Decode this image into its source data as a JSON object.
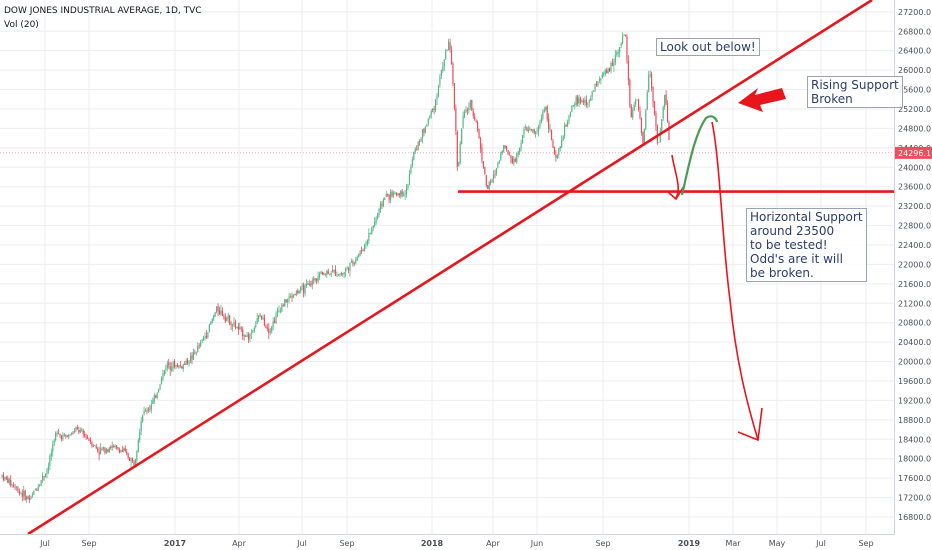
{
  "header": {
    "symbol_line": "DOW JONES INDUSTRIAL AVERAGE, 1D, TVC",
    "volume_line": "Vol (20)"
  },
  "colors": {
    "up_candle": "#53b987",
    "down_candle": "#eb4d5c",
    "trendline": "#e8161c",
    "green_path": "#4c9a52",
    "price_badge": "#ef4d5c",
    "grid": "#eceef1"
  },
  "chart_data": {
    "type": "candlestick",
    "symbol": "DOW JONES INDUSTRIAL AVERAGE",
    "interval": "1D",
    "source": "TVC",
    "ylim": [
      16000,
      27400
    ],
    "y_ticks": [
      "16800.0",
      "17200.0",
      "17600.0",
      "18000.0",
      "18400.0",
      "18800.0",
      "19200.0",
      "19600.0",
      "20000.0",
      "20400.0",
      "20800.0",
      "21200.0",
      "21600.0",
      "22000.0",
      "22400.0",
      "22800.0",
      "23200.0",
      "23600.0",
      "24000.0",
      "24400.0",
      "24800.0",
      "25200.0",
      "25600.0",
      "26000.0",
      "26400.0",
      "26800.0",
      "27200.0"
    ],
    "x_ticks": [
      "Jul",
      "Sep",
      "2017",
      "Apr",
      "Jul",
      "Sep",
      "2018",
      "Apr",
      "Jun",
      "Sep",
      "2019",
      "Mar",
      "May",
      "Jul",
      "Sep"
    ],
    "last_price": "24296.1",
    "series_approx": [
      [
        "2016-06-20",
        17650
      ],
      [
        "2016-06-27",
        17150
      ],
      [
        "2016-07-05",
        17800
      ],
      [
        "2016-07-15",
        18500
      ],
      [
        "2016-08-01",
        18450
      ],
      [
        "2016-08-15",
        18600
      ],
      [
        "2016-09-01",
        18400
      ],
      [
        "2016-09-15",
        18150
      ],
      [
        "2016-10-01",
        18250
      ],
      [
        "2016-10-20",
        18150
      ],
      [
        "2016-11-04",
        17900
      ],
      [
        "2016-11-15",
        18900
      ],
      [
        "2016-12-01",
        19150
      ],
      [
        "2016-12-20",
        19950
      ],
      [
        "2017-01-10",
        19900
      ],
      [
        "2017-01-26",
        20100
      ],
      [
        "2017-02-15",
        20600
      ],
      [
        "2017-03-01",
        21100
      ],
      [
        "2017-03-15",
        20900
      ],
      [
        "2017-04-01",
        20650
      ],
      [
        "2017-04-15",
        20500
      ],
      [
        "2017-05-01",
        20950
      ],
      [
        "2017-05-15",
        20650
      ],
      [
        "2017-06-01",
        21150
      ],
      [
        "2017-06-20",
        21400
      ],
      [
        "2017-07-10",
        21550
      ],
      [
        "2017-07-25",
        21800
      ],
      [
        "2017-08-10",
        21850
      ],
      [
        "2017-08-25",
        21800
      ],
      [
        "2017-09-10",
        22050
      ],
      [
        "2017-09-25",
        22350
      ],
      [
        "2017-10-10",
        22850
      ],
      [
        "2017-10-25",
        23400
      ],
      [
        "2017-11-10",
        23450
      ],
      [
        "2017-11-25",
        23500
      ],
      [
        "2017-12-05",
        24250
      ],
      [
        "2017-12-20",
        24750
      ],
      [
        "2018-01-05",
        25300
      ],
      [
        "2018-01-15",
        26000
      ],
      [
        "2018-01-26",
        26600
      ],
      [
        "2018-02-02",
        25550
      ],
      [
        "2018-02-08",
        23900
      ],
      [
        "2018-02-15",
        25000
      ],
      [
        "2018-02-26",
        25300
      ],
      [
        "2018-03-08",
        24900
      ],
      [
        "2018-03-23",
        23550
      ],
      [
        "2018-04-02",
        23800
      ],
      [
        "2018-04-15",
        24450
      ],
      [
        "2018-05-01",
        24100
      ],
      [
        "2018-05-15",
        24800
      ],
      [
        "2018-06-01",
        24700
      ],
      [
        "2018-06-12",
        25300
      ],
      [
        "2018-06-27",
        24100
      ],
      [
        "2018-07-10",
        24800
      ],
      [
        "2018-07-25",
        25400
      ],
      [
        "2018-08-10",
        25300
      ],
      [
        "2018-08-25",
        25800
      ],
      [
        "2018-09-10",
        26000
      ],
      [
        "2018-09-25",
        26500
      ],
      [
        "2018-10-03",
        26800
      ],
      [
        "2018-10-11",
        25050
      ],
      [
        "2018-10-20",
        25400
      ],
      [
        "2018-10-29",
        24450
      ],
      [
        "2018-11-07",
        26100
      ],
      [
        "2018-11-20",
        24400
      ],
      [
        "2018-11-30",
        25550
      ],
      [
        "2018-12-07",
        24300
      ]
    ],
    "annotations": [
      "Look out below!",
      "Rising Support\nBroken",
      "Horizontal Support\naround 23500\nto be tested!\nOdd's are it will\nbe broken."
    ],
    "horizontal_support": 23500,
    "grid": true
  }
}
